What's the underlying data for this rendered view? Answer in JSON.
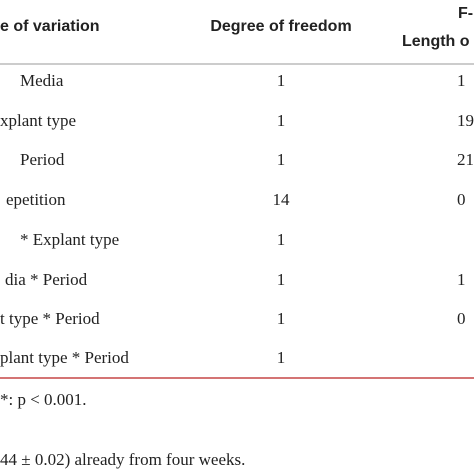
{
  "table": {
    "header": [
      "e of variation",
      "Degree of freedom",
      "F-",
      "Length o"
    ],
    "rows": [
      [
        "Media",
        "1",
        "1"
      ],
      [
        "xplant type",
        "1",
        "19"
      ],
      [
        "Period",
        "1",
        "21"
      ],
      [
        "epetition",
        "14",
        "0"
      ],
      [
        "* Explant type",
        "1"
      ],
      [
        "dia * Period",
        "1",
        "1"
      ],
      [
        "t type * Period",
        "1",
        "0"
      ],
      [
        "plant type * Period",
        "1"
      ]
    ]
  },
  "footnote": "*: p < 0.001.",
  "body_text": "44 ± 0.02) already from four weeks."
}
